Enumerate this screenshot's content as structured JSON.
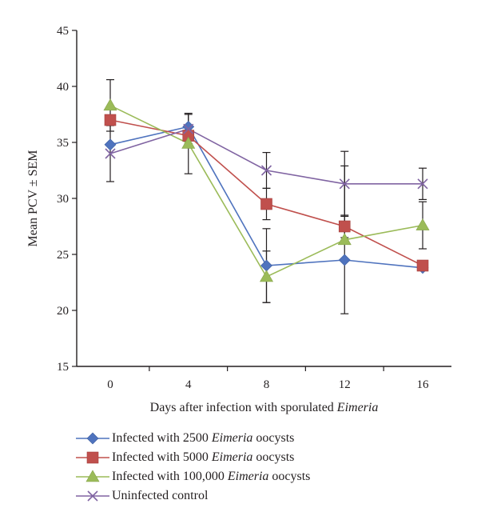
{
  "chart_data": {
    "type": "line",
    "xlabel_prefix": "Days after infection with sporulated ",
    "xlabel_italic": "Eimeria",
    "ylabel": "Mean PCV ± SEM",
    "x": [
      0,
      4,
      8,
      12,
      16
    ],
    "x_ticks": [
      "0",
      "4",
      "8",
      "12",
      "16"
    ],
    "ylim": [
      15,
      45
    ],
    "y_ticks": [
      "15",
      "20",
      "25",
      "30",
      "35",
      "40",
      "45"
    ],
    "grid": false,
    "legend_position": "bottom",
    "series": [
      {
        "name": "Infected with 2500 Eimeria oocysts",
        "label_pre": "Infected with 2500 ",
        "label_italic": "Eimeria",
        "label_post": " oocysts",
        "color": "#4f73be",
        "marker": "diamond",
        "values": [
          34.8,
          36.4,
          24.0,
          24.5,
          23.8
        ],
        "errors": [
          0.0,
          0.0,
          3.3,
          0.0,
          0.0
        ]
      },
      {
        "name": "Infected with 5000 Eimeria oocysts",
        "label_pre": "Infected with 5000 ",
        "label_italic": "Eimeria",
        "label_post": " oocysts",
        "color": "#c0504d",
        "marker": "square",
        "values": [
          37.0,
          35.6,
          29.5,
          27.5,
          24.0
        ],
        "errors": [
          0.0,
          0.0,
          1.4,
          1.0,
          0.0
        ]
      },
      {
        "name": "Infected with 100,000 Eimeria oocysts",
        "label_pre": "Infected with 100,000 ",
        "label_italic": "Eimeria",
        "label_post": " oocysts",
        "color": "#9bbb59",
        "marker": "triangle",
        "values": [
          38.3,
          34.9,
          23.0,
          26.3,
          27.6
        ],
        "errors": [
          2.3,
          2.7,
          2.3,
          6.6,
          2.1
        ]
      },
      {
        "name": "Uninfected control",
        "label_pre": "Uninfected control",
        "label_italic": "",
        "label_post": "",
        "color": "#8064a2",
        "marker": "x",
        "values": [
          34.0,
          36.2,
          32.5,
          31.3,
          31.3
        ],
        "errors": [
          2.5,
          1.3,
          1.6,
          2.9,
          1.4
        ]
      }
    ]
  }
}
